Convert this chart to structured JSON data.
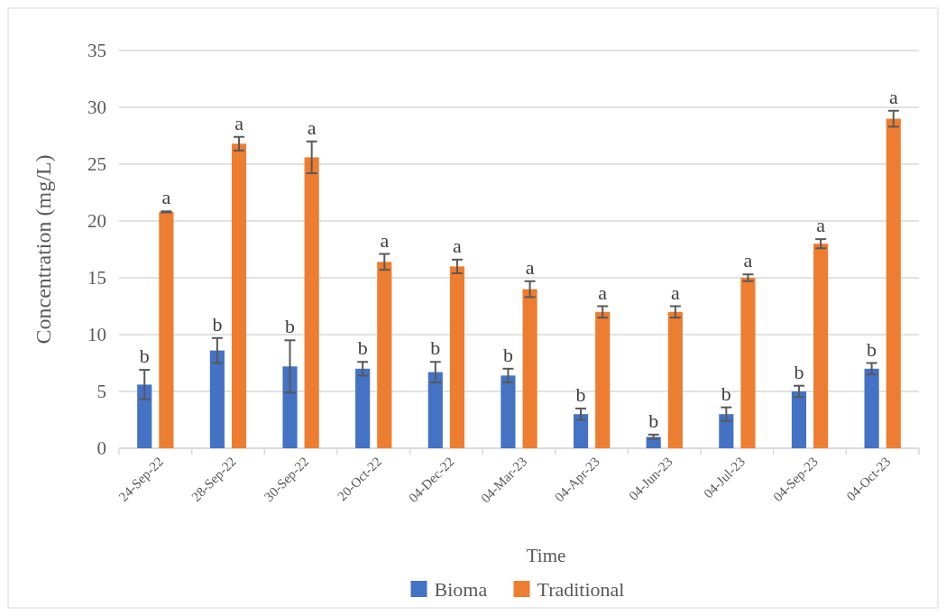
{
  "chart_data": {
    "type": "bar",
    "xlabel": "Time",
    "ylabel": "Concentration (mg/L)",
    "categories": [
      "24-Sep-22",
      "28-Sep-22",
      "30-Sep-22",
      "20-Oct-22",
      "04-Dec-22",
      "04-Mar-23",
      "04-Apr-23",
      "04-Jun-23",
      "04-Jul-23",
      "04-Sep-23",
      "04-Oct-23"
    ],
    "series": [
      {
        "name": "Bioma",
        "color": "#4472c4",
        "values": [
          5.6,
          8.6,
          7.2,
          7.0,
          6.7,
          6.4,
          3.0,
          1.0,
          3.0,
          5.0,
          7.0
        ],
        "errors": [
          1.3,
          1.1,
          2.3,
          0.6,
          0.9,
          0.6,
          0.5,
          0.2,
          0.6,
          0.5,
          0.5
        ],
        "value_labels": [
          "b",
          "b",
          "b",
          "b",
          "b",
          "b",
          "b",
          "b",
          "b",
          "b",
          "b"
        ]
      },
      {
        "name": "Traditional",
        "color": "#ed7d31",
        "values": [
          20.8,
          26.8,
          25.6,
          16.4,
          16.0,
          14.0,
          12.0,
          12.0,
          15.0,
          18.0,
          29.0
        ],
        "errors": [
          0.05,
          0.6,
          1.4,
          0.7,
          0.6,
          0.7,
          0.5,
          0.5,
          0.3,
          0.4,
          0.7
        ],
        "value_labels": [
          "a",
          "a",
          "a",
          "a",
          "a",
          "a",
          "a",
          "a",
          "a",
          "a",
          "a"
        ]
      }
    ],
    "ylim": [
      0,
      35
    ],
    "yticks": [
      0,
      5,
      10,
      15,
      20,
      25,
      30,
      35
    ],
    "grid": "y",
    "legend": "bottom"
  }
}
